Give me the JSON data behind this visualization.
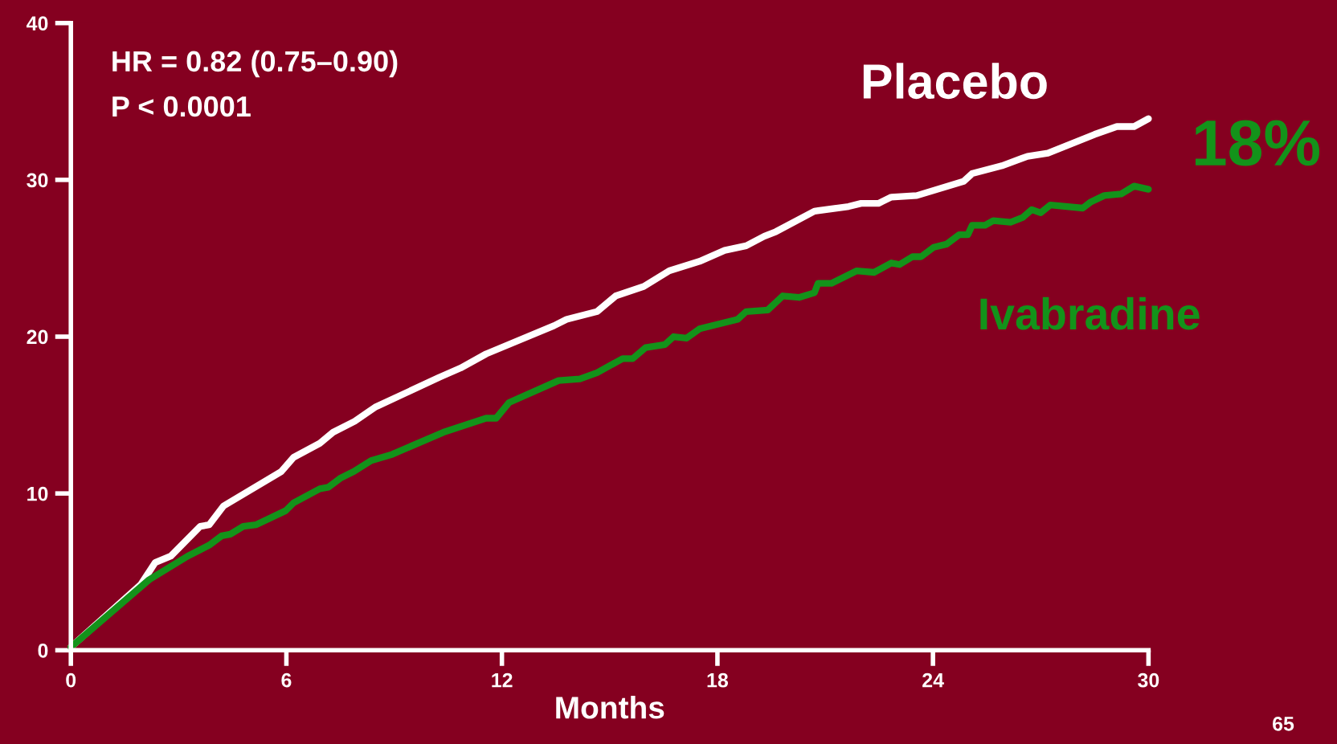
{
  "chart_data": {
    "type": "line",
    "xlabel": "Months",
    "xlim": [
      0,
      30
    ],
    "xticks": [
      0,
      6,
      12,
      18,
      24,
      30
    ],
    "ylim": [
      0,
      40
    ],
    "yticks": [
      0,
      10,
      20,
      30,
      40
    ],
    "grid": false,
    "legend": false,
    "marker": "none",
    "line_style": "solid",
    "annotations": [
      "HR = 0.82 (0.75–0.90)",
      "P < 0.0001",
      "18%",
      "65"
    ],
    "series": [
      {
        "name": "Placebo",
        "color": "#ffffff",
        "x": [
          0,
          1.95,
          2.35,
          2.78,
          3.6,
          3.85,
          4.25,
          5.86,
          6.2,
          6.93,
          7.3,
          7.9,
          8.47,
          10.25,
          10.85,
          11.56,
          13.45,
          13.8,
          14.65,
          15.17,
          15.95,
          16.66,
          17.5,
          18.2,
          18.8,
          19.3,
          19.63,
          20.7,
          21.65,
          22.0,
          22.48,
          22.84,
          23.55,
          24.85,
          25.09,
          25.92,
          26.63,
          27.2,
          28.5,
          29.12,
          29.6,
          30
        ],
        "values": [
          0.2,
          4.2,
          5.6,
          6.0,
          7.9,
          8.0,
          9.2,
          11.4,
          12.3,
          13.2,
          13.9,
          14.6,
          15.5,
          17.4,
          18.0,
          18.9,
          20.7,
          21.1,
          21.6,
          22.6,
          23.2,
          24.2,
          24.8,
          25.5,
          25.8,
          26.4,
          26.7,
          28.0,
          28.3,
          28.5,
          28.5,
          28.9,
          29.0,
          29.9,
          30.4,
          30.9,
          31.5,
          31.7,
          32.9,
          33.4,
          33.4,
          33.9
        ]
      },
      {
        "name": "Ivabradine",
        "color": "#13931a",
        "x": [
          0,
          2.18,
          3.25,
          3.85,
          4.2,
          4.44,
          4.8,
          5.15,
          5.98,
          6.2,
          6.93,
          7.17,
          7.52,
          7.88,
          8.36,
          8.95,
          10.37,
          11.56,
          11.84,
          12.2,
          13.58,
          14.17,
          14.65,
          15.36,
          15.64,
          16.0,
          16.54,
          16.78,
          17.14,
          17.5,
          18.56,
          18.8,
          19.4,
          19.82,
          20.27,
          20.7,
          20.8,
          21.17,
          21.88,
          22.36,
          22.84,
          23.07,
          23.43,
          23.67,
          24.02,
          24.38,
          24.73,
          24.97,
          25.09,
          25.45,
          25.68,
          26.16,
          26.5,
          26.75,
          27.0,
          27.27,
          28.17,
          28.4,
          28.77,
          29.24,
          29.6,
          30
        ],
        "values": [
          0.2,
          4.5,
          6.0,
          6.7,
          7.3,
          7.4,
          7.9,
          8.0,
          8.9,
          9.4,
          10.3,
          10.4,
          11.0,
          11.4,
          12.1,
          12.5,
          13.9,
          14.8,
          14.8,
          15.8,
          17.2,
          17.3,
          17.7,
          18.6,
          18.6,
          19.3,
          19.5,
          20.0,
          19.9,
          20.5,
          21.1,
          21.6,
          21.7,
          22.6,
          22.5,
          22.8,
          23.4,
          23.4,
          24.2,
          24.1,
          24.7,
          24.6,
          25.1,
          25.1,
          25.7,
          25.9,
          26.5,
          26.5,
          27.1,
          27.1,
          27.4,
          27.3,
          27.6,
          28.1,
          27.9,
          28.4,
          28.2,
          28.6,
          29.0,
          29.1,
          29.6,
          29.4
        ]
      }
    ]
  }
}
